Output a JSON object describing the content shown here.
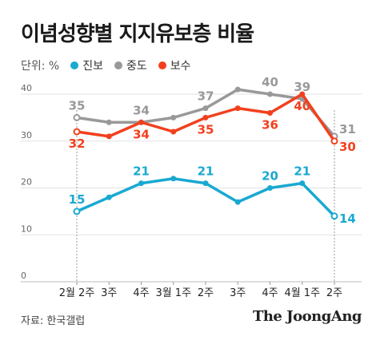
{
  "title": "이념성향별 지지유보층 비율",
  "unit_label": "단위: %",
  "source": "자료: 한국갤럽",
  "brand": "The JoongAng",
  "colors": {
    "진보": "#19a9d1",
    "중도": "#999999",
    "보수": "#f2401e"
  },
  "chart_data": {
    "type": "line",
    "title": "이념성향별 지지유보층 비율",
    "categories": [
      "2월 2주",
      "3주",
      "4주",
      "3월 1주",
      "2주",
      "3주",
      "4주",
      "4월 1주",
      "2주"
    ],
    "ylim": [
      0,
      40
    ],
    "yticks": [
      0,
      10,
      20,
      30,
      40
    ],
    "grid": true,
    "legend": "top-left",
    "series": [
      {
        "name": "진보",
        "color": "#19a9d1",
        "values": [
          15,
          18,
          21,
          22,
          21,
          17,
          20,
          21,
          14
        ],
        "labels": [
          "15",
          "",
          "21",
          "",
          "21",
          "",
          "20",
          "21",
          "14"
        ]
      },
      {
        "name": "중도",
        "color": "#999999",
        "values": [
          35,
          34,
          34,
          35,
          37,
          41,
          40,
          39,
          31
        ],
        "labels": [
          "35",
          "",
          "34",
          "",
          "37",
          "",
          "40",
          "39",
          "31"
        ]
      },
      {
        "name": "보수",
        "color": "#f2401e",
        "values": [
          32,
          31,
          34,
          32,
          35,
          37,
          36,
          40,
          30
        ],
        "labels": [
          "32",
          "",
          "34",
          "",
          "35",
          "",
          "36",
          "40",
          "30"
        ]
      }
    ]
  }
}
